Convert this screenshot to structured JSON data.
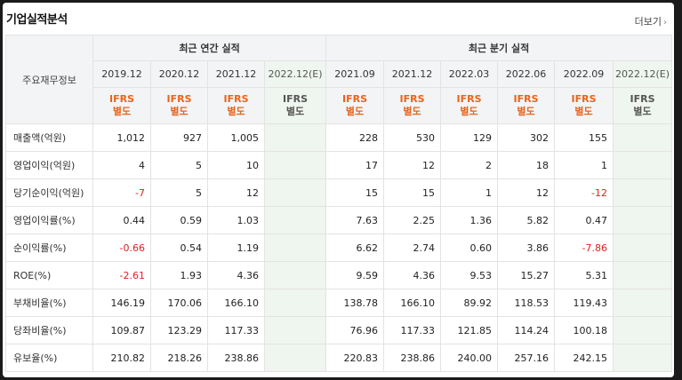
{
  "panel": {
    "title": "기업실적분석",
    "more_label": "더보기"
  },
  "table": {
    "row_header": "주요재무정보",
    "groups": [
      {
        "label": "최근 연간 실적"
      },
      {
        "label": "최근 분기 실적"
      }
    ],
    "periods": [
      "2019.12",
      "2020.12",
      "2021.12",
      "2022.12(E)",
      "2021.09",
      "2021.12",
      "2022.03",
      "2022.06",
      "2022.09",
      "2022.12(E)"
    ],
    "ifrs_top": "IFRS",
    "ifrs_bottom": "별도",
    "rows": [
      {
        "label": "매출액(억원)",
        "values": [
          "1,012",
          "927",
          "1,005",
          "",
          "228",
          "530",
          "129",
          "302",
          "155",
          ""
        ]
      },
      {
        "label": "영업이익(억원)",
        "values": [
          "4",
          "5",
          "10",
          "",
          "17",
          "12",
          "2",
          "18",
          "1",
          ""
        ]
      },
      {
        "label": "당기순이익(억원)",
        "values": [
          "-7",
          "5",
          "12",
          "",
          "15",
          "15",
          "1",
          "12",
          "-12",
          ""
        ]
      },
      {
        "label": "영업이익률(%)",
        "values": [
          "0.44",
          "0.59",
          "1.03",
          "",
          "7.63",
          "2.25",
          "1.36",
          "5.82",
          "0.47",
          ""
        ]
      },
      {
        "label": "순이익률(%)",
        "values": [
          "-0.66",
          "0.54",
          "1.19",
          "",
          "6.62",
          "2.74",
          "0.60",
          "3.86",
          "-7.86",
          ""
        ]
      },
      {
        "label": "ROE(%)",
        "values": [
          "-2.61",
          "1.93",
          "4.36",
          "",
          "9.59",
          "4.36",
          "9.53",
          "15.27",
          "5.31",
          ""
        ]
      },
      {
        "label": "부채비율(%)",
        "values": [
          "146.19",
          "170.06",
          "166.10",
          "",
          "138.78",
          "166.10",
          "89.92",
          "118.53",
          "119.43",
          ""
        ]
      },
      {
        "label": "당좌비율(%)",
        "values": [
          "109.87",
          "123.29",
          "117.33",
          "",
          "76.96",
          "117.33",
          "121.85",
          "114.24",
          "100.18",
          ""
        ]
      },
      {
        "label": "유보율(%)",
        "values": [
          "210.82",
          "218.26",
          "238.86",
          "",
          "220.83",
          "238.86",
          "240.00",
          "257.16",
          "242.15",
          ""
        ]
      }
    ],
    "colors": {
      "negative": "#e02020",
      "ifrs": "#e8641b",
      "estimate_bg": "#eff5ef"
    }
  }
}
